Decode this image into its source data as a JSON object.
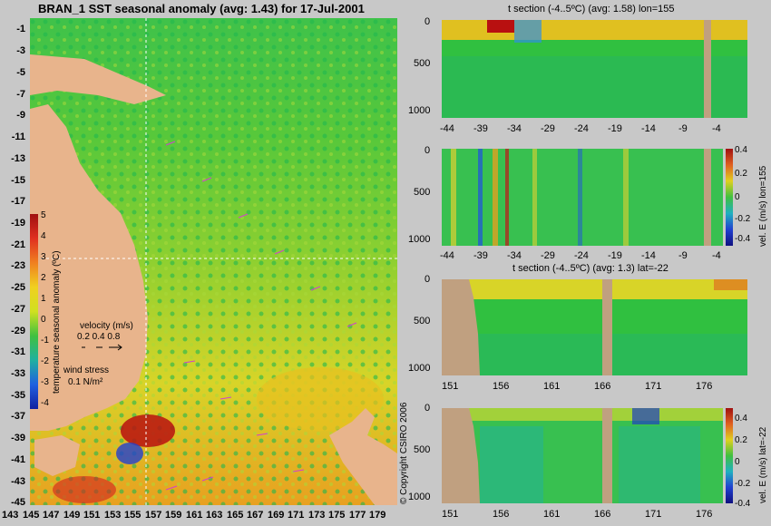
{
  "map": {
    "title": "BRAN_1 SST seasonal anomaly (avg: 1.43) for 17-Jul-2001",
    "lat_labels": [
      "-1",
      "-3",
      "-5",
      "-7",
      "-9",
      "-11",
      "-13",
      "-15",
      "-17",
      "-19",
      "-21",
      "-23",
      "-25",
      "-27",
      "-29",
      "-31",
      "-33",
      "-35",
      "-37",
      "-39",
      "-41",
      "-43",
      "-45"
    ],
    "lon_labels": [
      "143",
      "145",
      "147",
      "149",
      "151",
      "153",
      "155",
      "157",
      "159",
      "161",
      "163",
      "165",
      "167",
      "169",
      "171",
      "173",
      "175",
      "177",
      "179"
    ],
    "colorbar": {
      "ticks": [
        "5",
        "4",
        "3",
        "2",
        "1",
        "0",
        "-1",
        "-2",
        "-3",
        "-4"
      ],
      "label": "temperature seasonal anomaly (ºC)"
    },
    "velocity": {
      "label": "velocity (m/s)",
      "values": "0.2 0.4 0.8"
    },
    "wind": {
      "label": "wind stress",
      "value": "0.1 N/m²"
    },
    "copyright": "© Copyright CSIRO 2006",
    "crosshair": {
      "lon": 155,
      "lat": -22
    }
  },
  "panels": [
    {
      "title": "t section (-4..5ºC) (avg: 1.58) lon=155",
      "depth_ticks": [
        "0",
        "500",
        "1000"
      ],
      "x_ticks": [
        "-44",
        "-39",
        "-34",
        "-29",
        "-24",
        "-19",
        "-14",
        "-9",
        "-4"
      ]
    },
    {
      "title": "",
      "depth_ticks": [
        "0",
        "500",
        "1000"
      ],
      "x_ticks": [
        "-44",
        "-39",
        "-34",
        "-29",
        "-24",
        "-19",
        "-14",
        "-9",
        "-4"
      ],
      "colorbar_label": "vel. E (m/s) lon=155",
      "cbar_ticks": [
        "0.4",
        "0.2",
        "0",
        "-0.2",
        "-0.4"
      ]
    },
    {
      "title": "t section (-4..5ºC) (avg: 1.3) lat=-22",
      "depth_ticks": [
        "0",
        "500",
        "1000"
      ],
      "x_ticks": [
        "151",
        "156",
        "161",
        "166",
        "171",
        "176"
      ]
    },
    {
      "title": "",
      "depth_ticks": [
        "0",
        "500",
        "1000"
      ],
      "x_ticks": [
        "151",
        "156",
        "161",
        "166",
        "171",
        "176"
      ],
      "colorbar_label": "vel. E (m/s) lat=-22",
      "cbar_ticks": [
        "0.4",
        "0.2",
        "0",
        "-0.2",
        "-0.4"
      ]
    }
  ]
}
